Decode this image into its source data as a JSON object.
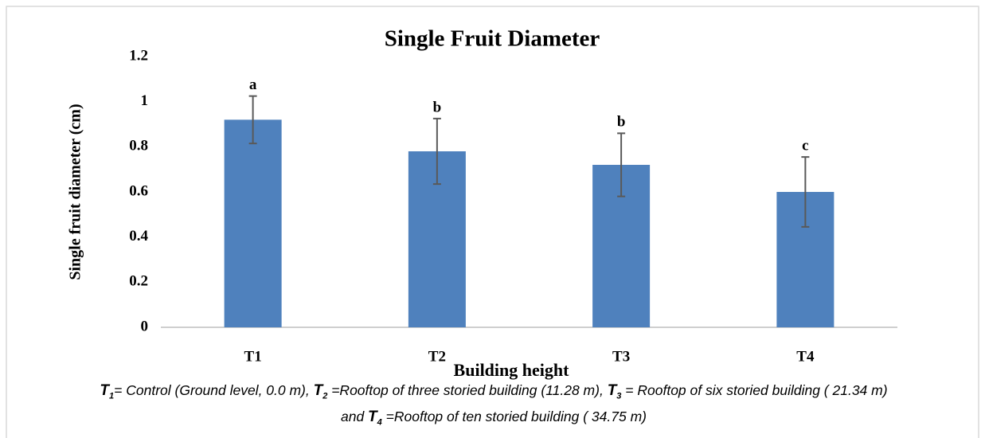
{
  "chart_data": {
    "type": "bar",
    "title": "Single Fruit Diameter",
    "x_label": "Building height",
    "y_label": "Single fruit diameter (cm)",
    "categories": [
      "T1",
      "T2",
      "T3",
      "T4"
    ],
    "values": [
      0.92,
      0.78,
      0.72,
      0.6
    ],
    "errors": [
      0.105,
      0.145,
      0.14,
      0.155
    ],
    "letters": [
      "a",
      "b",
      "b",
      "c"
    ],
    "color": "#4f81bd",
    "ylim": [
      0,
      1.2
    ],
    "yticks": [
      0,
      0.2,
      0.4,
      0.6,
      0.8,
      1,
      1.2
    ],
    "grid": false
  },
  "footnote": [
    {
      "label": "T",
      "sub": "1",
      "text": "= Control (Ground level, 0.0 m), "
    },
    {
      "label": "T",
      "sub": "2",
      "text": " =Rooftop of three storied building (11.28 m), "
    },
    {
      "label": "T",
      "sub": "3",
      "text": " = Rooftop of six storied building ( 21.34 m) and "
    },
    {
      "label": "T",
      "sub": "4",
      "text": " =Rooftop of ten storied building ( 34.75 m)"
    }
  ]
}
